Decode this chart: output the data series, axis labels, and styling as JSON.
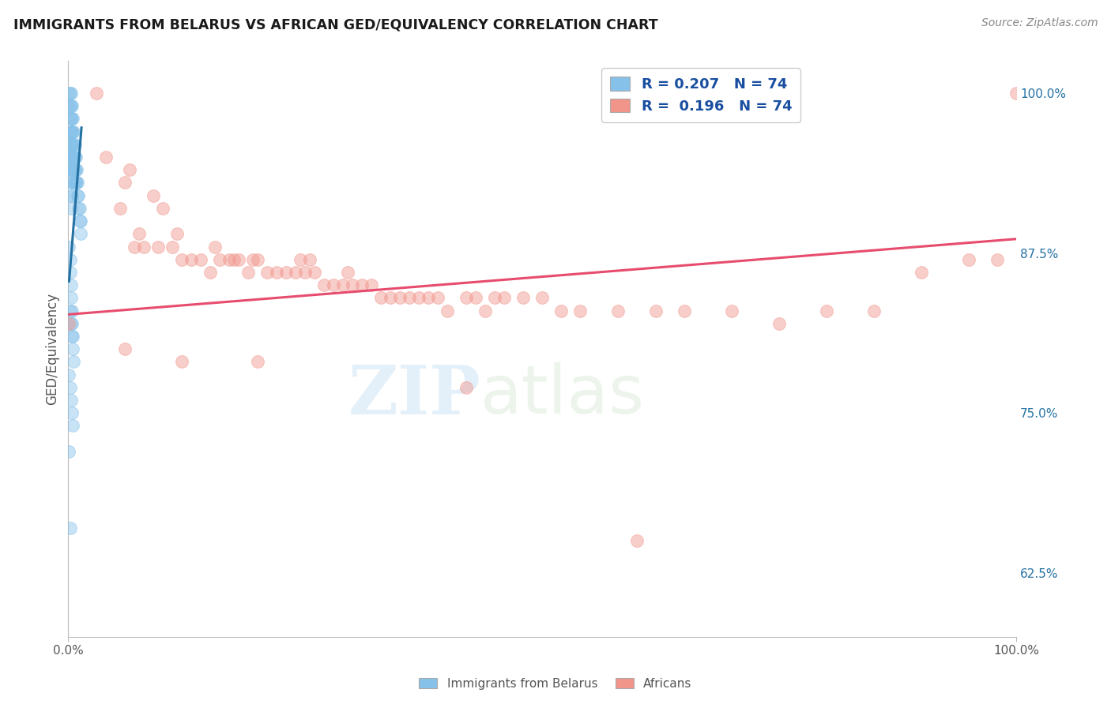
{
  "title": "IMMIGRANTS FROM BELARUS VS AFRICAN GED/EQUIVALENCY CORRELATION CHART",
  "source": "Source: ZipAtlas.com",
  "ylabel": "GED/Equivalency",
  "legend_label1": "Immigrants from Belarus",
  "legend_label2": "Africans",
  "blue_color": "#85c1e9",
  "blue_line_color": "#2471a3",
  "pink_color": "#f1948a",
  "pink_line_color": "#e74c6e",
  "blue_scatter_x": [
    0.001,
    0.001,
    0.002,
    0.002,
    0.002,
    0.002,
    0.002,
    0.002,
    0.002,
    0.003,
    0.003,
    0.003,
    0.003,
    0.003,
    0.003,
    0.003,
    0.003,
    0.003,
    0.003,
    0.004,
    0.004,
    0.004,
    0.004,
    0.004,
    0.004,
    0.004,
    0.004,
    0.005,
    0.005,
    0.005,
    0.005,
    0.005,
    0.005,
    0.006,
    0.006,
    0.006,
    0.006,
    0.007,
    0.007,
    0.007,
    0.007,
    0.008,
    0.008,
    0.008,
    0.009,
    0.009,
    0.01,
    0.01,
    0.011,
    0.011,
    0.012,
    0.012,
    0.013,
    0.013,
    0.001,
    0.002,
    0.002,
    0.003,
    0.003,
    0.004,
    0.004,
    0.005,
    0.005,
    0.006,
    0.002,
    0.003,
    0.004,
    0.001,
    0.002,
    0.003,
    0.004,
    0.005,
    0.001,
    0.002
  ],
  "blue_scatter_y": [
    1.0,
    0.99,
    1.0,
    0.99,
    0.98,
    0.97,
    0.96,
    0.95,
    0.94,
    1.0,
    0.99,
    0.98,
    0.97,
    0.96,
    0.95,
    0.94,
    0.93,
    0.92,
    0.91,
    0.99,
    0.98,
    0.97,
    0.96,
    0.95,
    0.94,
    0.93,
    0.92,
    0.98,
    0.97,
    0.96,
    0.95,
    0.94,
    0.93,
    0.97,
    0.96,
    0.95,
    0.94,
    0.96,
    0.95,
    0.94,
    0.93,
    0.95,
    0.94,
    0.93,
    0.94,
    0.93,
    0.93,
    0.92,
    0.92,
    0.91,
    0.91,
    0.9,
    0.9,
    0.89,
    0.88,
    0.87,
    0.86,
    0.85,
    0.84,
    0.83,
    0.82,
    0.81,
    0.8,
    0.79,
    0.83,
    0.82,
    0.81,
    0.78,
    0.77,
    0.76,
    0.75,
    0.74,
    0.72,
    0.66
  ],
  "pink_scatter_x": [
    0.001,
    0.03,
    0.04,
    0.055,
    0.06,
    0.065,
    0.07,
    0.075,
    0.08,
    0.09,
    0.095,
    0.1,
    0.11,
    0.115,
    0.12,
    0.13,
    0.14,
    0.15,
    0.155,
    0.16,
    0.17,
    0.175,
    0.18,
    0.19,
    0.195,
    0.2,
    0.21,
    0.22,
    0.23,
    0.24,
    0.245,
    0.25,
    0.255,
    0.26,
    0.27,
    0.28,
    0.29,
    0.295,
    0.3,
    0.31,
    0.32,
    0.33,
    0.34,
    0.35,
    0.36,
    0.37,
    0.38,
    0.39,
    0.4,
    0.42,
    0.43,
    0.44,
    0.45,
    0.46,
    0.48,
    0.5,
    0.52,
    0.54,
    0.58,
    0.62,
    0.65,
    0.7,
    0.75,
    0.8,
    0.85,
    0.9,
    0.95,
    0.98,
    1.0,
    0.06,
    0.12,
    0.2,
    0.42,
    0.6
  ],
  "pink_scatter_y": [
    0.82,
    1.0,
    0.95,
    0.91,
    0.93,
    0.94,
    0.88,
    0.89,
    0.88,
    0.92,
    0.88,
    0.91,
    0.88,
    0.89,
    0.87,
    0.87,
    0.87,
    0.86,
    0.88,
    0.87,
    0.87,
    0.87,
    0.87,
    0.86,
    0.87,
    0.87,
    0.86,
    0.86,
    0.86,
    0.86,
    0.87,
    0.86,
    0.87,
    0.86,
    0.85,
    0.85,
    0.85,
    0.86,
    0.85,
    0.85,
    0.85,
    0.84,
    0.84,
    0.84,
    0.84,
    0.84,
    0.84,
    0.84,
    0.83,
    0.84,
    0.84,
    0.83,
    0.84,
    0.84,
    0.84,
    0.84,
    0.83,
    0.83,
    0.83,
    0.83,
    0.83,
    0.83,
    0.82,
    0.83,
    0.83,
    0.86,
    0.87,
    0.87,
    1.0,
    0.8,
    0.79,
    0.79,
    0.77,
    0.65
  ],
  "blue_trend_x": [
    0.001,
    0.014
  ],
  "blue_trend_y": [
    0.853,
    0.973
  ],
  "pink_trend_x": [
    0.0,
    1.0
  ],
  "pink_trend_y": [
    0.827,
    0.886
  ],
  "watermark_zip": "ZIP",
  "watermark_atlas": "atlas",
  "xlim": [
    0.0,
    1.0
  ],
  "ylim": [
    0.575,
    1.025
  ],
  "ytick_values": [
    1.0,
    0.875,
    0.75,
    0.625
  ],
  "ytick_labels": [
    "100.0%",
    "87.5%",
    "75.0%",
    "62.5%"
  ]
}
